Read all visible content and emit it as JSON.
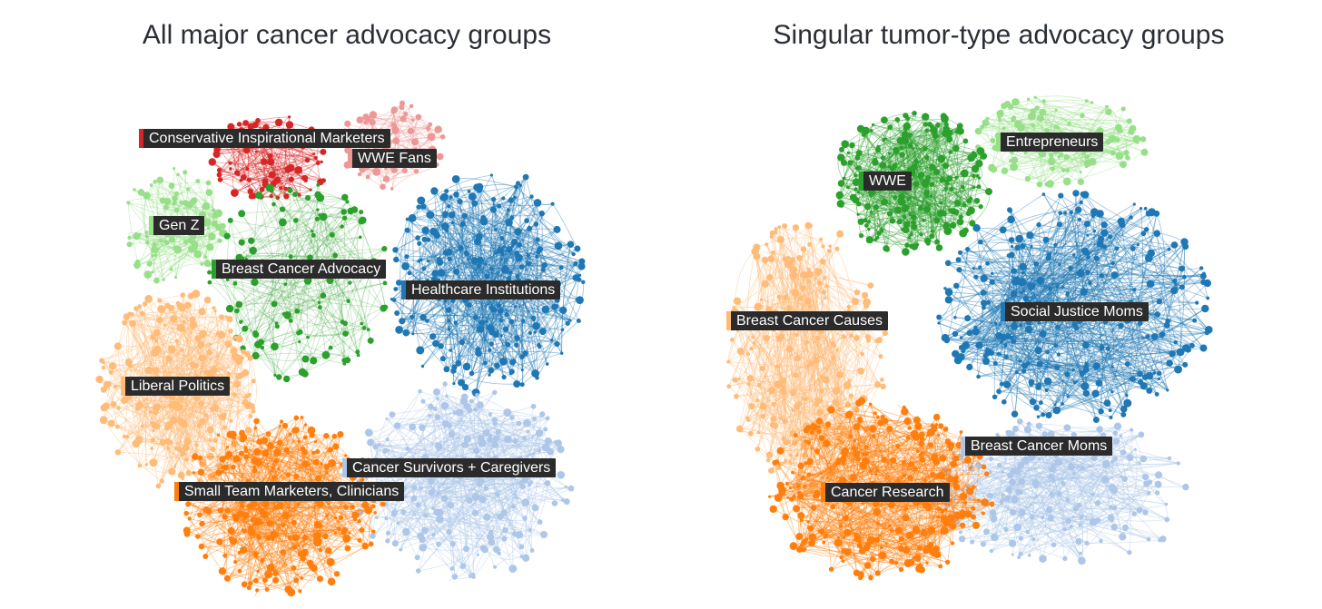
{
  "figures": [
    {
      "id": "left",
      "title": "All major cancer advocacy groups",
      "clusters": [
        {
          "id": "conservative",
          "label": "Conservative Inspirational Marketers",
          "color": "#d62728"
        },
        {
          "id": "wwe-fans",
          "label": "WWE Fans",
          "color": "#ee9896"
        },
        {
          "id": "gen-z",
          "label": "Gen Z",
          "color": "#98df8a"
        },
        {
          "id": "breast-cancer-advocacy",
          "label": "Breast Cancer Advocacy",
          "color": "#2ca02c"
        },
        {
          "id": "healthcare",
          "label": "Healthcare Institutions",
          "color": "#1f77b4"
        },
        {
          "id": "liberal",
          "label": "Liberal Politics",
          "color": "#ffbb78"
        },
        {
          "id": "survivors",
          "label": "Cancer Survivors + Caregivers",
          "color": "#aec7e8"
        },
        {
          "id": "small-team",
          "label": "Small Team Marketers, Clinicians",
          "color": "#ff7f0e"
        }
      ]
    },
    {
      "id": "right",
      "title": "Singular tumor-type advocacy groups",
      "clusters": [
        {
          "id": "entrepreneurs",
          "label": "Entrepreneurs",
          "color": "#98df8a"
        },
        {
          "id": "wwe",
          "label": "WWE",
          "color": "#2ca02c"
        },
        {
          "id": "breast-cancer-causes",
          "label": "Breast Cancer Causes",
          "color": "#ffbb78"
        },
        {
          "id": "social-justice",
          "label": "Social Justice Moms",
          "color": "#1f77b4"
        },
        {
          "id": "breast-cancer-moms",
          "label": "Breast Cancer Moms",
          "color": "#aec7e8"
        },
        {
          "id": "cancer-research",
          "label": "Cancer Research",
          "color": "#ff7f0e"
        }
      ]
    }
  ]
}
